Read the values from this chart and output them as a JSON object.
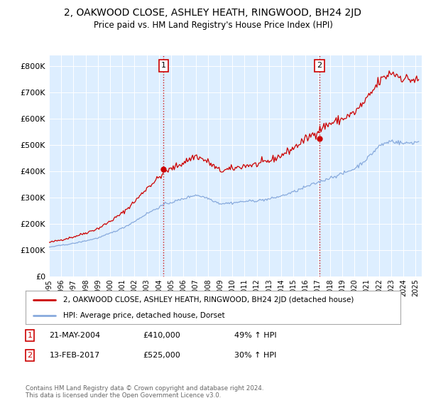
{
  "title": "2, OAKWOOD CLOSE, ASHLEY HEATH, RINGWOOD, BH24 2JD",
  "subtitle": "Price paid vs. HM Land Registry's House Price Index (HPI)",
  "bg_color": "#ddeeff",
  "red_line_label": "2, OAKWOOD CLOSE, ASHLEY HEATH, RINGWOOD, BH24 2JD (detached house)",
  "blue_line_label": "HPI: Average price, detached house, Dorset",
  "sale1_date": "21-MAY-2004",
  "sale1_price": 410000,
  "sale1_note": "49% ↑ HPI",
  "sale2_date": "13-FEB-2017",
  "sale2_price": 525000,
  "sale2_note": "30% ↑ HPI",
  "copyright": "Contains HM Land Registry data © Crown copyright and database right 2024.\nThis data is licensed under the Open Government Licence v3.0.",
  "ylim": [
    0,
    840000
  ],
  "yticks": [
    0,
    100000,
    200000,
    300000,
    400000,
    500000,
    600000,
    700000,
    800000
  ],
  "xlim_start": 1995.0,
  "xlim_end": 2025.5,
  "red_color": "#cc0000",
  "blue_color": "#88aadd",
  "vline_color": "#cc0000",
  "sale1_x": 2004.38,
  "sale2_x": 2017.12
}
